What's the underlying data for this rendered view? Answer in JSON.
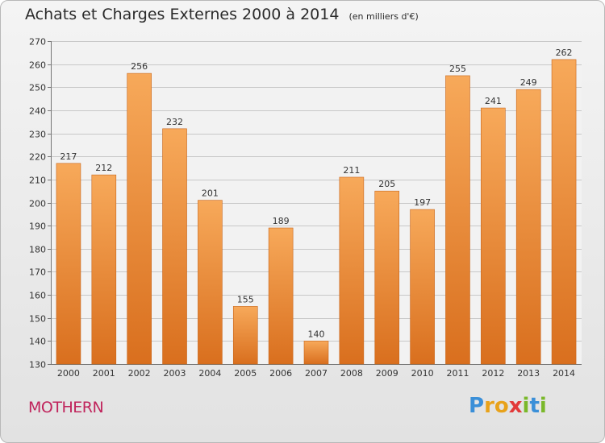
{
  "chart_data": {
    "type": "bar",
    "title": "Achats et Charges Externes 2000 à 2014",
    "subtitle": "(en milliers d'€)",
    "categories": [
      "2000",
      "2001",
      "2002",
      "2003",
      "2004",
      "2005",
      "2006",
      "2007",
      "2008",
      "2009",
      "2010",
      "2011",
      "2012",
      "2013",
      "2014"
    ],
    "values": [
      217,
      212,
      256,
      232,
      201,
      155,
      189,
      140,
      211,
      205,
      197,
      255,
      241,
      249,
      262
    ],
    "ylim": [
      130,
      270
    ],
    "yticks": [
      130,
      140,
      150,
      160,
      170,
      180,
      190,
      200,
      210,
      220,
      230,
      240,
      250,
      260,
      270
    ],
    "grid": true,
    "bar_color": "#f0903a",
    "bar_color_light": "#f7a95a",
    "bar_color_dark": "#d96f1e"
  },
  "footer": {
    "commune": "MOTHERN",
    "commune_color": "#c0245c"
  },
  "brand": {
    "letters": [
      "P",
      "r",
      "o",
      "x",
      "i",
      "t",
      "i"
    ],
    "colors": [
      "#3a8fd8",
      "#e8a21a",
      "#e8a21a",
      "#e23a3a",
      "#7ab82a",
      "#3a8fd8",
      "#7ab82a"
    ]
  }
}
